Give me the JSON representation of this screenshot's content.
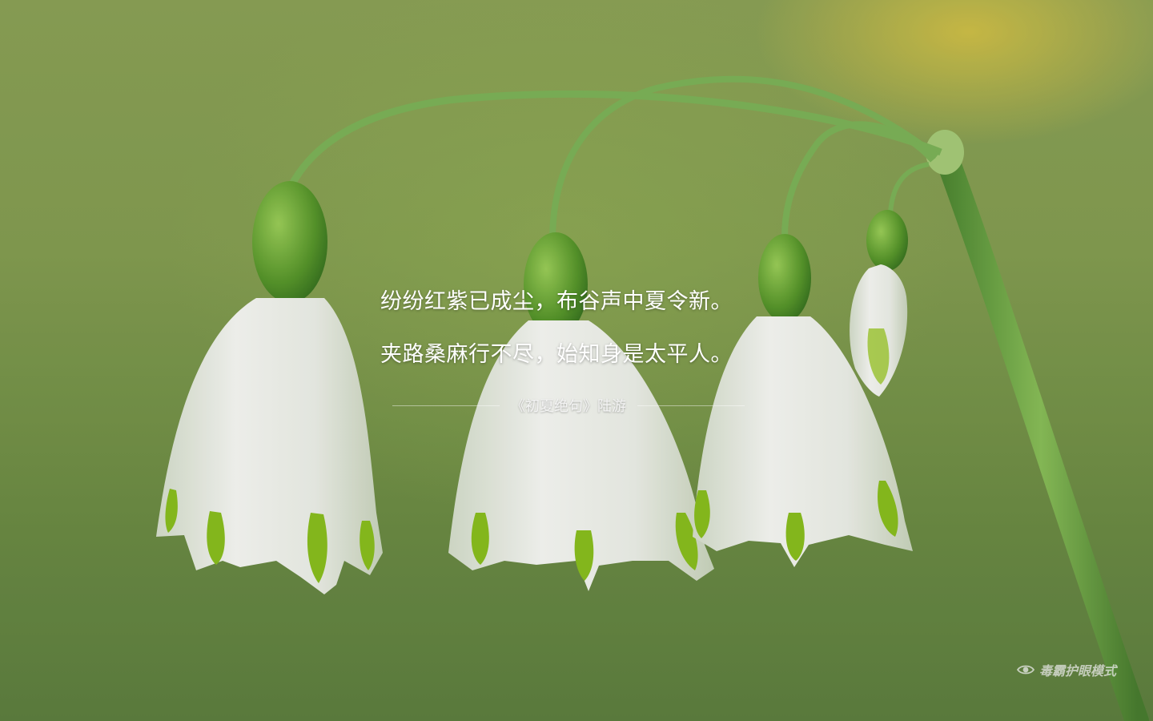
{
  "poem": {
    "lines": [
      "纷纷红紫已成尘，布谷声中夏令新。",
      "夹路桑麻行不尽，始知身是太平人。"
    ],
    "source": "《初夏绝句》陆游"
  },
  "eye_mode": {
    "icon": "eye-icon",
    "label": "毒霸护眼模式"
  },
  "colors": {
    "background_green": "#86a052",
    "petal_white": "#f3f5ef",
    "stem_green": "#5e9a3c",
    "tip_green": "#8cc21e"
  }
}
